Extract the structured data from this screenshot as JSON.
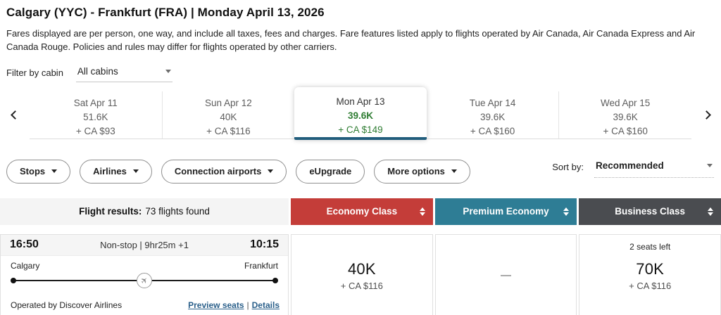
{
  "colors": {
    "economy-red": "#c43d39",
    "premium-teal": "#2e7d95",
    "business-gray": "#4a4c50",
    "selected-green": "#2f7d33",
    "selected-bar-blue": "#215d7c",
    "link-blue": "#2a5f8a"
  },
  "icons": {
    "plane": "✈"
  },
  "header": {
    "title": "Calgary (YYC) - Frankfurt (FRA)  |  Monday April 13, 2026",
    "disclaimer": "Fares displayed are per person, one way, and include all taxes, fees and charges. Fare features listed apply to flights operated by Air Canada, Air Canada Express and Air Canada Rouge. Policies and rules may differ for flights operated by other carriers."
  },
  "cabin_filter": {
    "label": "Filter by cabin",
    "value": "All cabins"
  },
  "date_carousel": {
    "days": [
      {
        "date": "Sat Apr 11",
        "points": "51.6K",
        "cash": "+ CA $93",
        "selected": false
      },
      {
        "date": "Sun Apr 12",
        "points": "40K",
        "cash": "+ CA $116",
        "selected": false
      },
      {
        "date": "Mon Apr 13",
        "points": "39.6K",
        "cash": "+ CA $149",
        "selected": true
      },
      {
        "date": "Tue Apr 14",
        "points": "39.6K",
        "cash": "+ CA $160",
        "selected": false
      },
      {
        "date": "Wed Apr 15",
        "points": "39.6K",
        "cash": "+ CA $160",
        "selected": false
      }
    ]
  },
  "filters": {
    "pills": [
      {
        "label": "Stops"
      },
      {
        "label": "Airlines"
      },
      {
        "label": "Connection airports"
      },
      {
        "label": "eUpgrade"
      },
      {
        "label": "More options"
      }
    ],
    "sort": {
      "label": "Sort by:",
      "value": "Recommended"
    }
  },
  "results_header": {
    "summary_bold": "Flight results:",
    "summary_rest": "73 flights found",
    "columns": [
      {
        "label": "Economy Class"
      },
      {
        "label": "Premium Economy"
      },
      {
        "label": "Business Class"
      }
    ]
  },
  "flight": {
    "departure_time": "16:50",
    "stops_duration": "Non-stop | 9hr25m +1",
    "arrival_time": "10:15",
    "origin": "Calgary",
    "destination": "Frankfurt",
    "operated_by": "Operated by Discover Airlines",
    "links": {
      "preview": "Preview seats",
      "separator": "|",
      "details": "Details"
    },
    "fares": {
      "economy": {
        "points": "40K",
        "cash": "+ CA $116"
      },
      "premium": {
        "unavailable": "—"
      },
      "business": {
        "availability": "2 seats left",
        "points": "70K",
        "cash": "+ CA $116"
      }
    }
  }
}
